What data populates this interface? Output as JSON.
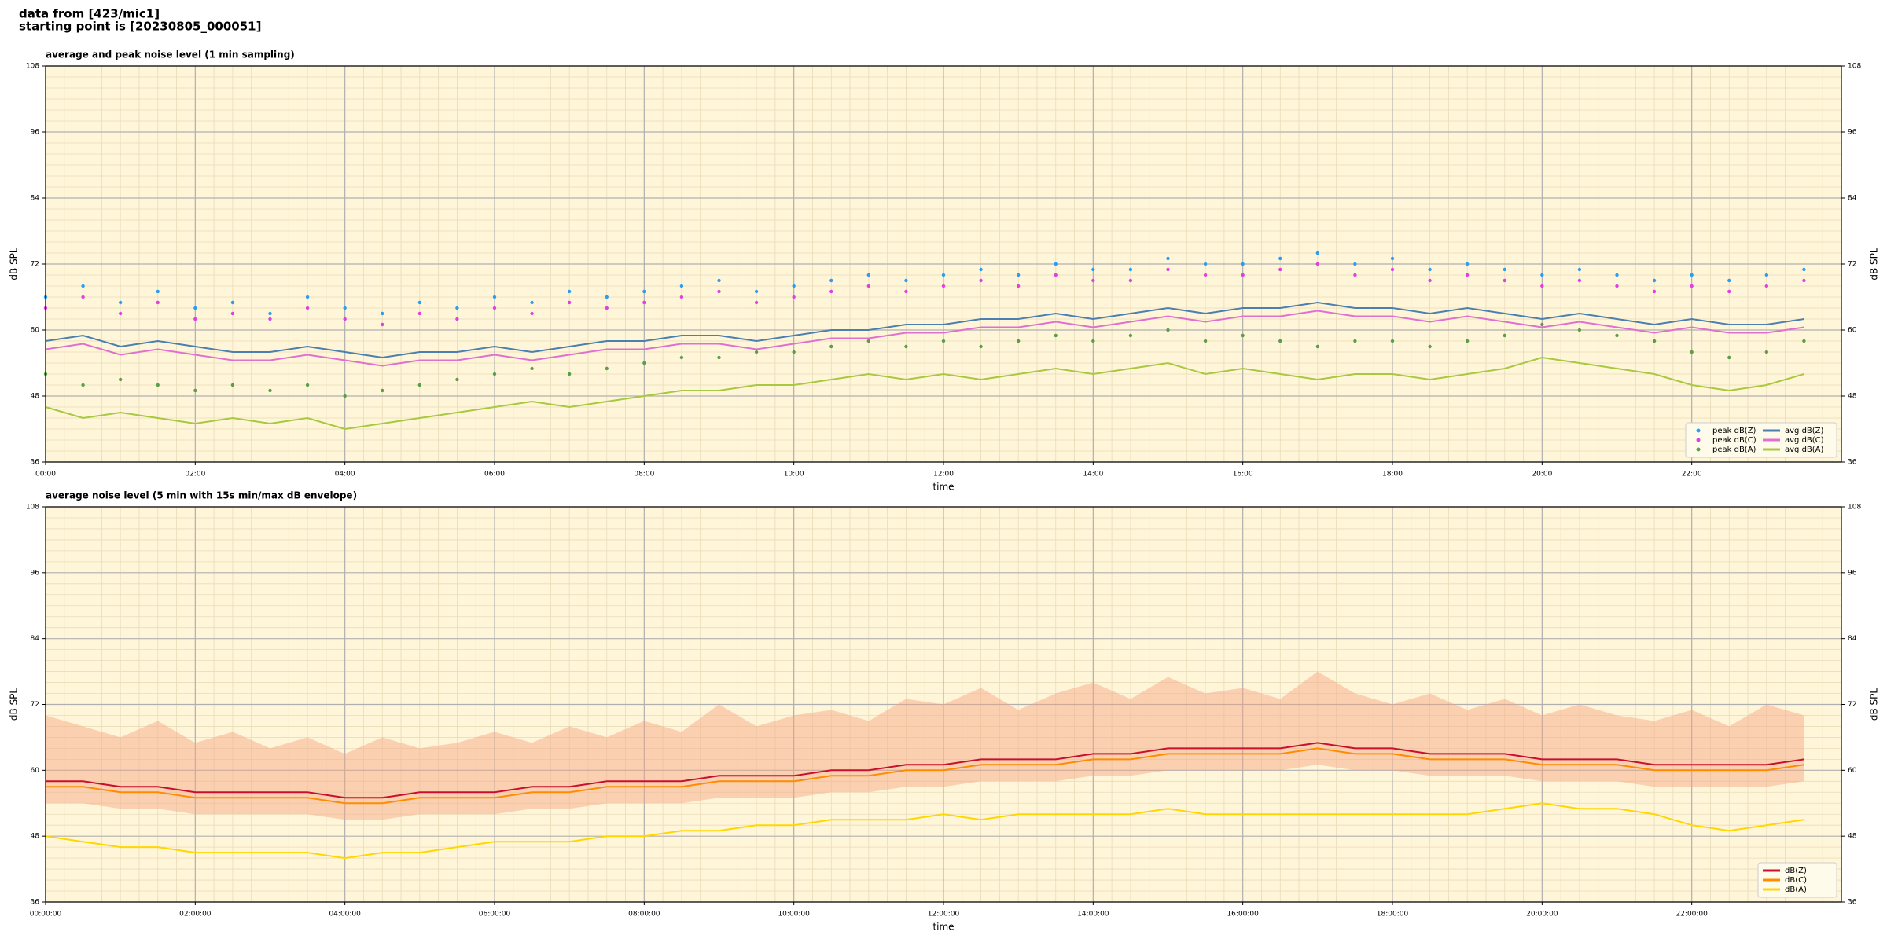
{
  "header": {
    "lines": [
      "data from [423/mic1]",
      "starting point is [20230805_000051]"
    ]
  },
  "chart_data": [
    {
      "type": "line",
      "title": "average and peak noise level (1 min sampling)",
      "x_label": "time",
      "y_label": "dB SPL",
      "xlim": [
        0,
        24
      ],
      "ylim": [
        36,
        108
      ],
      "xticks": [
        {
          "value": 0,
          "label": "00:00"
        },
        {
          "value": 2,
          "label": "02:00"
        },
        {
          "value": 4,
          "label": "04:00"
        },
        {
          "value": 6,
          "label": "06:00"
        },
        {
          "value": 8,
          "label": "08:00"
        },
        {
          "value": 10,
          "label": "10:00"
        },
        {
          "value": 12,
          "label": "12:00"
        },
        {
          "value": 14,
          "label": "14:00"
        },
        {
          "value": 16,
          "label": "16:00"
        },
        {
          "value": 18,
          "label": "18:00"
        },
        {
          "value": 20,
          "label": "20:00"
        },
        {
          "value": 22,
          "label": "22:00"
        }
      ],
      "yticks": [
        36,
        48,
        60,
        72,
        84,
        96,
        108
      ],
      "grid": true,
      "background": "#fff5d8",
      "legend_corner": "lower right",
      "legend_columns": 2,
      "x": [
        0,
        0.5,
        1,
        1.5,
        2,
        2.5,
        3,
        3.5,
        4,
        4.5,
        5,
        5.5,
        6,
        6.5,
        7,
        7.5,
        8,
        8.5,
        9,
        9.5,
        10,
        10.5,
        11,
        11.5,
        12,
        12.5,
        13,
        13.5,
        14,
        14.5,
        15,
        15.5,
        16,
        16.5,
        17,
        17.5,
        18,
        18.5,
        19,
        19.5,
        20,
        20.5,
        21,
        21.5,
        22,
        22.5,
        23,
        23.5
      ],
      "series": [
        {
          "name": "peak dB(Z)",
          "kind": "scatter",
          "color": "#2a9df4",
          "values": [
            66,
            68,
            65,
            67,
            64,
            65,
            63,
            66,
            64,
            63,
            65,
            64,
            66,
            65,
            67,
            66,
            67,
            68,
            69,
            67,
            68,
            69,
            70,
            69,
            70,
            71,
            70,
            72,
            71,
            71,
            73,
            72,
            72,
            73,
            74,
            72,
            73,
            71,
            72,
            71,
            70,
            71,
            70,
            69,
            70,
            69,
            70,
            71
          ]
        },
        {
          "name": "peak dB(C)",
          "kind": "scatter",
          "color": "#e040e0",
          "values": [
            64,
            66,
            63,
            65,
            62,
            63,
            62,
            64,
            62,
            61,
            63,
            62,
            64,
            63,
            65,
            64,
            65,
            66,
            67,
            65,
            66,
            67,
            68,
            67,
            68,
            69,
            68,
            70,
            69,
            69,
            71,
            70,
            70,
            71,
            72,
            70,
            71,
            69,
            70,
            69,
            68,
            69,
            68,
            67,
            68,
            67,
            68,
            69
          ]
        },
        {
          "name": "peak dB(A)",
          "kind": "scatter",
          "color": "#5a9e4a",
          "values": [
            52,
            50,
            51,
            50,
            49,
            50,
            49,
            50,
            48,
            49,
            50,
            51,
            52,
            53,
            52,
            53,
            54,
            55,
            55,
            56,
            56,
            57,
            58,
            57,
            58,
            57,
            58,
            59,
            58,
            59,
            60,
            58,
            59,
            58,
            57,
            58,
            58,
            57,
            58,
            59,
            61,
            60,
            59,
            58,
            56,
            55,
            56,
            58
          ]
        },
        {
          "name": "avg dB(Z)",
          "kind": "line",
          "color": "#4a7fb0",
          "values": [
            58,
            59,
            57,
            58,
            57,
            56,
            56,
            57,
            56,
            55,
            56,
            56,
            57,
            56,
            57,
            58,
            58,
            59,
            59,
            58,
            59,
            60,
            60,
            61,
            61,
            62,
            62,
            63,
            62,
            63,
            64,
            63,
            64,
            64,
            65,
            64,
            64,
            63,
            64,
            63,
            62,
            63,
            62,
            61,
            62,
            61,
            61,
            62
          ]
        },
        {
          "name": "avg dB(C)",
          "kind": "line",
          "color": "#e070d0",
          "values": [
            56.5,
            57.5,
            55.5,
            56.5,
            55.5,
            54.5,
            54.5,
            55.5,
            54.5,
            53.5,
            54.5,
            54.5,
            55.5,
            54.5,
            55.5,
            56.5,
            56.5,
            57.5,
            57.5,
            56.5,
            57.5,
            58.5,
            58.5,
            59.5,
            59.5,
            60.5,
            60.5,
            61.5,
            60.5,
            61.5,
            62.5,
            61.5,
            62.5,
            62.5,
            63.5,
            62.5,
            62.5,
            61.5,
            62.5,
            61.5,
            60.5,
            61.5,
            60.5,
            59.5,
            60.5,
            59.5,
            59.5,
            60.5
          ]
        },
        {
          "name": "avg dB(A)",
          "kind": "line",
          "color": "#a8c840",
          "values": [
            46,
            44,
            45,
            44,
            43,
            44,
            43,
            44,
            42,
            43,
            44,
            45,
            46,
            47,
            46,
            47,
            48,
            49,
            49,
            50,
            50,
            51,
            52,
            51,
            52,
            51,
            52,
            53,
            52,
            53,
            54,
            52,
            53,
            52,
            51,
            52,
            52,
            51,
            52,
            53,
            55,
            54,
            53,
            52,
            50,
            49,
            50,
            52
          ]
        }
      ]
    },
    {
      "type": "line",
      "title": "average noise level (5 min with 15s min/max dB envelope)",
      "x_label": "time",
      "y_label": "dB SPL",
      "xlim": [
        0,
        24
      ],
      "ylim": [
        36,
        108
      ],
      "xticks": [
        {
          "value": 0,
          "label": "00:00:00"
        },
        {
          "value": 2,
          "label": "02:00:00"
        },
        {
          "value": 4,
          "label": "04:00:00"
        },
        {
          "value": 6,
          "label": "06:00:00"
        },
        {
          "value": 8,
          "label": "08:00:00"
        },
        {
          "value": 10,
          "label": "10:00:00"
        },
        {
          "value": 12,
          "label": "12:00:00"
        },
        {
          "value": 14,
          "label": "14:00:00"
        },
        {
          "value": 16,
          "label": "16:00:00"
        },
        {
          "value": 18,
          "label": "18:00:00"
        },
        {
          "value": 20,
          "label": "20:00:00"
        },
        {
          "value": 22,
          "label": "22:00:00"
        }
      ],
      "yticks": [
        36,
        48,
        60,
        72,
        84,
        96,
        108
      ],
      "grid": true,
      "background": "#fff5d8",
      "legend_corner": "lower right",
      "legend_columns": 1,
      "x": [
        0,
        0.5,
        1,
        1.5,
        2,
        2.5,
        3,
        3.5,
        4,
        4.5,
        5,
        5.5,
        6,
        6.5,
        7,
        7.5,
        8,
        8.5,
        9,
        9.5,
        10,
        10.5,
        11,
        11.5,
        12,
        12.5,
        13,
        13.5,
        14,
        14.5,
        15,
        15.5,
        16,
        16.5,
        17,
        17.5,
        18,
        18.5,
        19,
        19.5,
        20,
        20.5,
        21,
        21.5,
        22,
        22.5,
        23,
        23.5
      ],
      "envelope": {
        "color": "#f4a582",
        "low": [
          54,
          54,
          53,
          53,
          52,
          52,
          52,
          52,
          51,
          51,
          52,
          52,
          52,
          53,
          53,
          54,
          54,
          54,
          55,
          55,
          55,
          56,
          56,
          57,
          57,
          58,
          58,
          58,
          59,
          59,
          60,
          60,
          60,
          60,
          61,
          60,
          60,
          59,
          59,
          59,
          58,
          58,
          58,
          57,
          57,
          57,
          57,
          58
        ],
        "high": [
          70,
          68,
          66,
          69,
          65,
          67,
          64,
          66,
          63,
          66,
          64,
          65,
          67,
          65,
          68,
          66,
          69,
          67,
          72,
          68,
          70,
          71,
          69,
          73,
          72,
          75,
          71,
          74,
          76,
          73,
          77,
          74,
          75,
          73,
          78,
          74,
          72,
          74,
          71,
          73,
          70,
          72,
          70,
          69,
          71,
          68,
          72,
          70
        ]
      },
      "series": [
        {
          "name": "dB(Z)",
          "kind": "line",
          "color": "#c8102e",
          "values": [
            58,
            58,
            57,
            57,
            56,
            56,
            56,
            56,
            55,
            55,
            56,
            56,
            56,
            57,
            57,
            58,
            58,
            58,
            59,
            59,
            59,
            60,
            60,
            61,
            61,
            62,
            62,
            62,
            63,
            63,
            64,
            64,
            64,
            64,
            65,
            64,
            64,
            63,
            63,
            63,
            62,
            62,
            62,
            61,
            61,
            61,
            61,
            62
          ]
        },
        {
          "name": "dB(C)",
          "kind": "line",
          "color": "#ff8c00",
          "values": [
            57,
            57,
            56,
            56,
            55,
            55,
            55,
            55,
            54,
            54,
            55,
            55,
            55,
            56,
            56,
            57,
            57,
            57,
            58,
            58,
            58,
            59,
            59,
            60,
            60,
            61,
            61,
            61,
            62,
            62,
            63,
            63,
            63,
            63,
            64,
            63,
            63,
            62,
            62,
            62,
            61,
            61,
            61,
            60,
            60,
            60,
            60,
            61
          ]
        },
        {
          "name": "dB(A)",
          "kind": "line",
          "color": "#ffd700",
          "values": [
            48,
            47,
            46,
            46,
            45,
            45,
            45,
            45,
            44,
            45,
            45,
            46,
            47,
            47,
            47,
            48,
            48,
            49,
            49,
            50,
            50,
            51,
            51,
            51,
            52,
            51,
            52,
            52,
            52,
            52,
            53,
            52,
            52,
            52,
            52,
            52,
            52,
            52,
            52,
            53,
            54,
            53,
            53,
            52,
            50,
            49,
            50,
            51
          ]
        }
      ]
    }
  ]
}
